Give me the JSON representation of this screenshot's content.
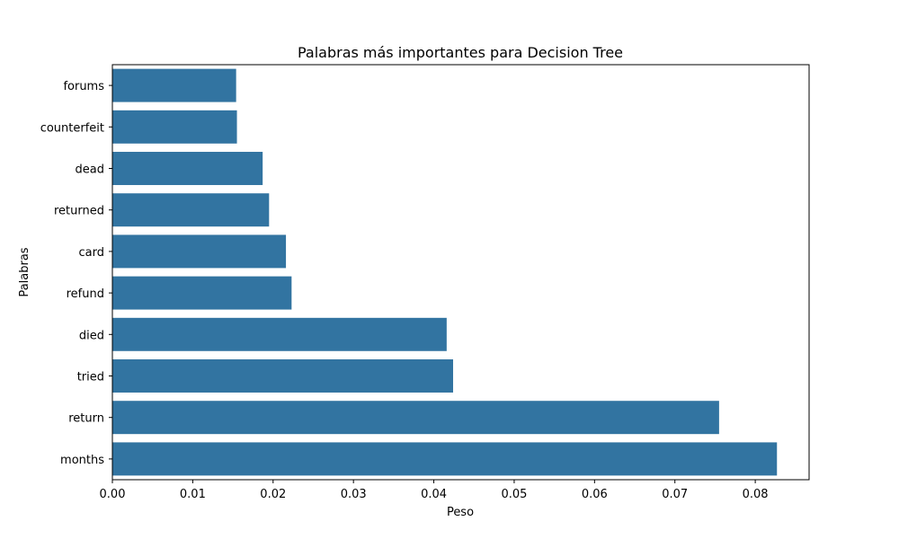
{
  "chart_data": {
    "type": "bar",
    "orientation": "horizontal",
    "title": "Palabras más importantes para Decision Tree",
    "xlabel": "Peso",
    "ylabel": "Palabras",
    "categories": [
      "forums",
      "counterfeit",
      "dead",
      "returned",
      "card",
      "refund",
      "died",
      "tried",
      "return",
      "months"
    ],
    "values": [
      0.0154,
      0.0155,
      0.0187,
      0.0195,
      0.0216,
      0.0223,
      0.0416,
      0.0424,
      0.0755,
      0.0827
    ],
    "xlim": [
      0,
      0.0867
    ],
    "xticks": [
      0.0,
      0.01,
      0.02,
      0.03,
      0.04,
      0.05,
      0.06,
      0.07,
      0.08
    ],
    "xtick_labels": [
      "0.00",
      "0.01",
      "0.02",
      "0.03",
      "0.04",
      "0.05",
      "0.06",
      "0.07",
      "0.08"
    ],
    "grid": false,
    "bar_color": "#3274a1"
  }
}
